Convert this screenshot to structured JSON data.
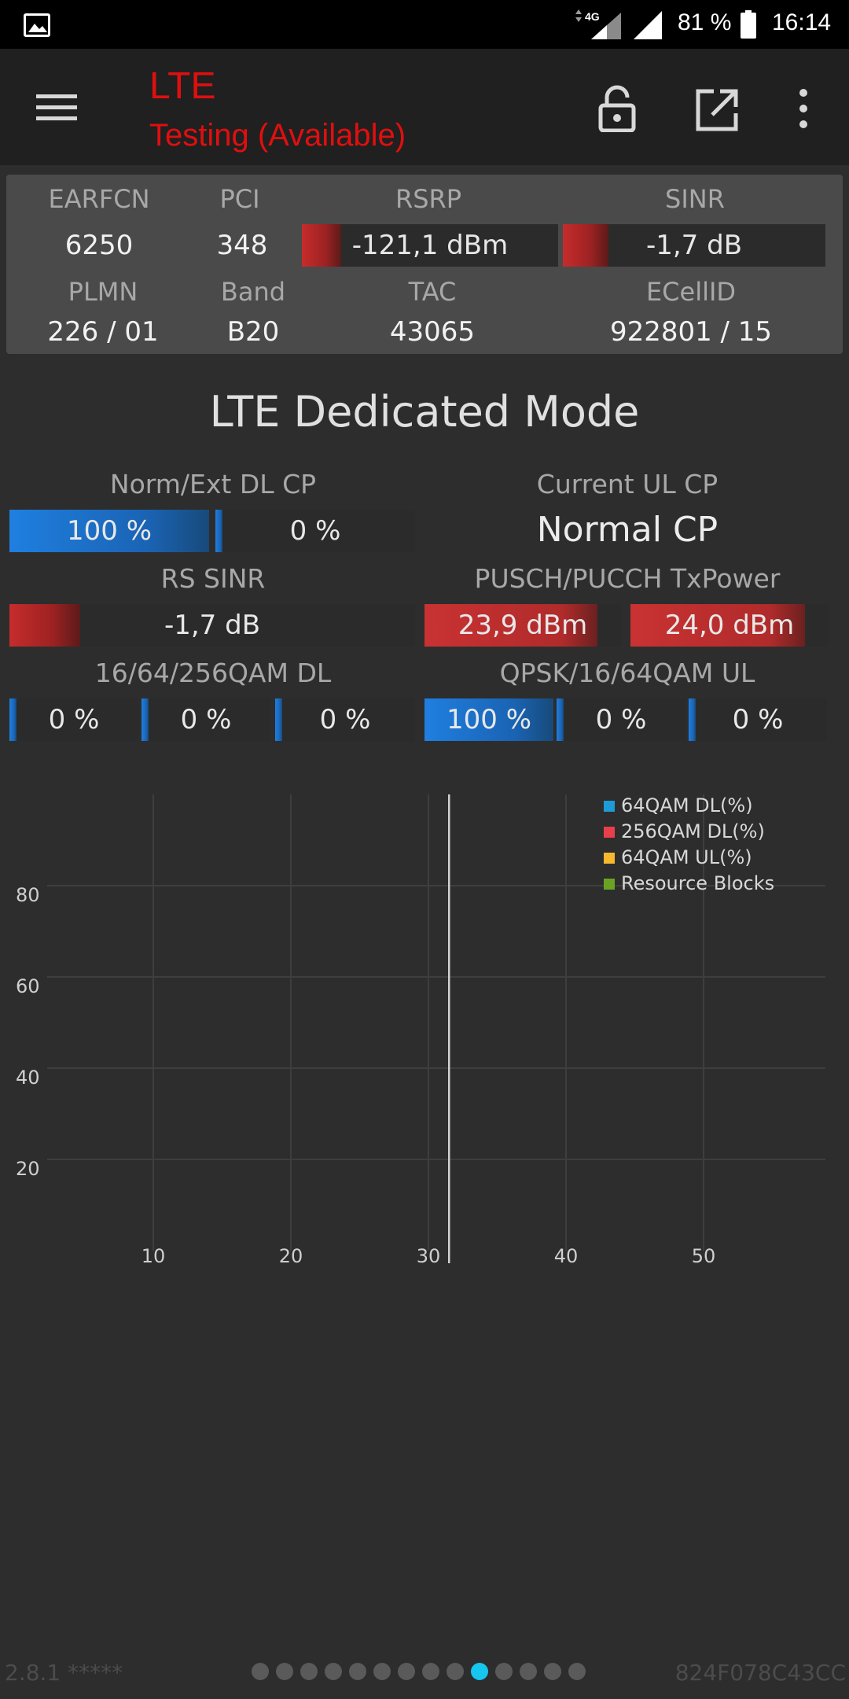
{
  "status_bar": {
    "network": "4G",
    "battery": "81 %",
    "time": "16:14"
  },
  "app_bar": {
    "title": "LTE",
    "subtitle": "Testing (Available)"
  },
  "cell_info": {
    "labels": {
      "earfcn": "EARFCN",
      "pci": "PCI",
      "rsrp": "RSRP",
      "sinr": "SINR",
      "plmn": "PLMN",
      "band": "Band",
      "tac": "TAC",
      "ecellid": "ECellID"
    },
    "values": {
      "earfcn": "6250",
      "pci": "348",
      "rsrp": "-121,1 dBm",
      "sinr": "-1,7 dB",
      "plmn": "226 / 01",
      "band": "B20",
      "tac": "43065",
      "ecellid": "922801 / 15"
    }
  },
  "dedicated": {
    "title": "LTE Dedicated Mode",
    "norm_ext_label": "Norm/Ext DL CP",
    "norm_value": "100 %",
    "ext_value": "0 %",
    "ul_cp_label": "Current UL CP",
    "ul_cp_value": "Normal CP",
    "rs_sinr_label": "RS SINR",
    "rs_sinr_value": "-1,7 dB",
    "txpower_label": "PUSCH/PUCCH TxPower",
    "pusch_value": "23,9 dBm",
    "pucch_value": "24,0 dBm",
    "qam_dl_label": "16/64/256QAM DL",
    "qam_dl_values": [
      "0 %",
      "0 %",
      "0 %"
    ],
    "qam_ul_label": "QPSK/16/64QAM UL",
    "qam_ul_values": [
      "100 %",
      "0 %",
      "0 %"
    ]
  },
  "chart_data": {
    "type": "line",
    "x_ticks": [
      "10",
      "20",
      "30",
      "40",
      "50"
    ],
    "y_ticks": [
      "20",
      "40",
      "60",
      "80"
    ],
    "xlim": [
      0,
      60
    ],
    "ylim": [
      0,
      100
    ],
    "cursor_x": 31.5,
    "grid": true,
    "legend_position": "top-right",
    "series": [
      {
        "name": "64QAM DL(%)",
        "color": "#1e9bd7",
        "values": []
      },
      {
        "name": "256QAM DL(%)",
        "color": "#e8404a",
        "values": []
      },
      {
        "name": "64QAM UL(%)",
        "color": "#f5b82e",
        "values": []
      },
      {
        "name": "Resource Blocks",
        "color": "#6aa324",
        "values": []
      }
    ]
  },
  "footer": {
    "version": "2.8.1 *****",
    "device_id": "824F078C43CC",
    "page_count": 14,
    "active_page": 10
  }
}
